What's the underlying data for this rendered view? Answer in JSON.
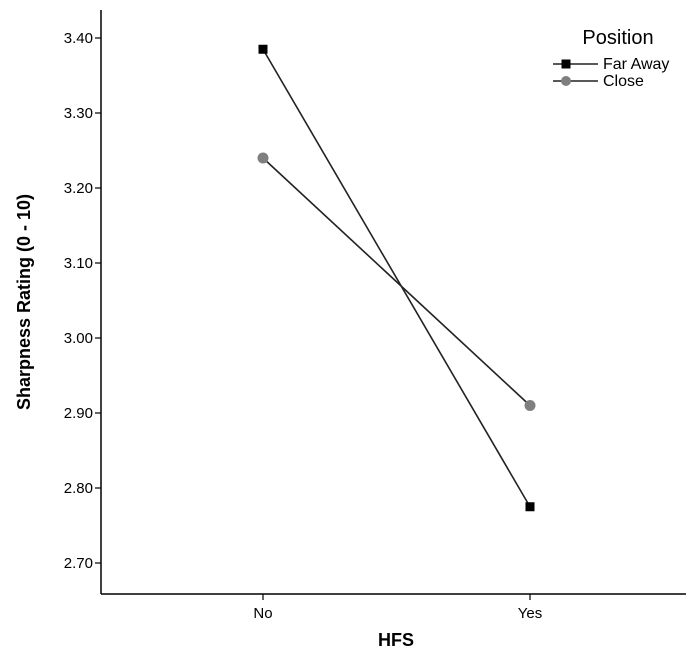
{
  "chart_data": {
    "type": "line",
    "xlabel": "HFS",
    "ylabel": "Sharpness Rating (0 - 10)",
    "categories": [
      "No",
      "Yes"
    ],
    "ylim": [
      2.65,
      3.43
    ],
    "yticks": [
      2.7,
      2.8,
      2.9,
      3.0,
      3.1,
      3.2,
      3.3,
      3.4
    ],
    "ytick_labels": [
      "2.70",
      "2.80",
      "2.90",
      "3.00",
      "3.10",
      "3.20",
      "3.30",
      "3.40"
    ],
    "grid": false,
    "legend": {
      "title": "Position",
      "placement": "top-right"
    },
    "series": [
      {
        "name": "Far Away",
        "marker": "square",
        "color": "#000000",
        "values": [
          3.385,
          2.775
        ]
      },
      {
        "name": "Close",
        "marker": "circle",
        "color": "#7f7f7f",
        "values": [
          3.24,
          2.91
        ]
      }
    ]
  }
}
